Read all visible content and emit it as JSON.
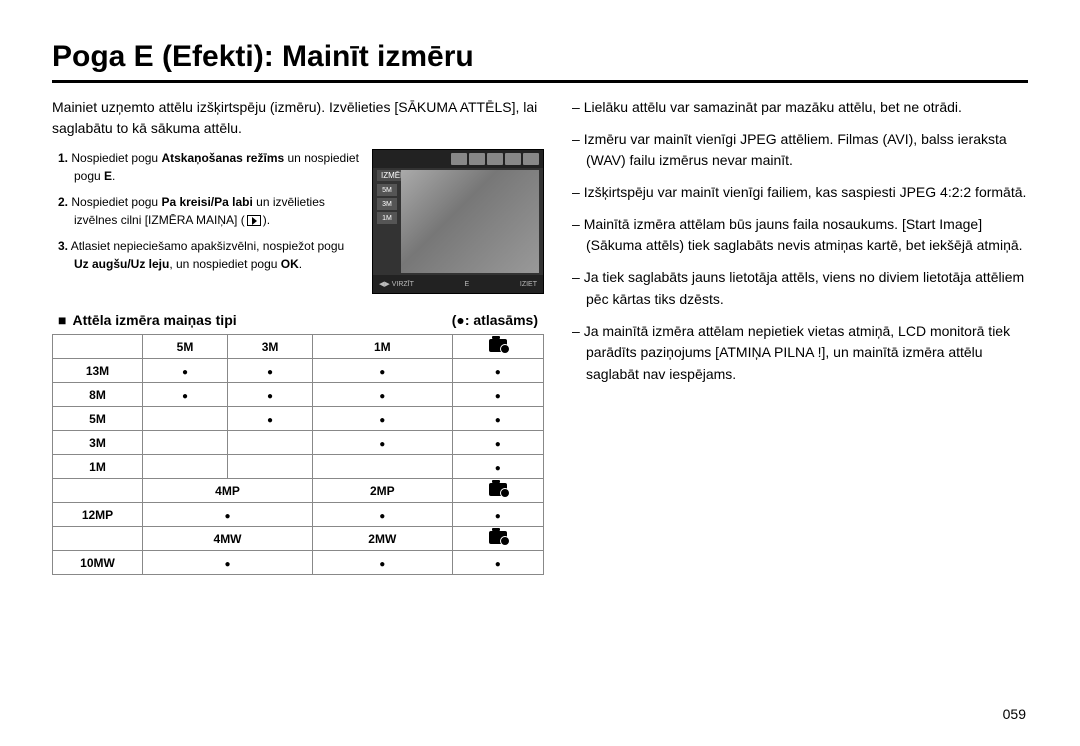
{
  "title": "Poga E (Efekti): Mainīt izmēru",
  "intro": "Mainiet uzņemto attēlu izšķirtspēju (izmēru). Izvēlieties [SĀKUMA ATTĒLS], lai saglabātu to kā sākuma attēlu.",
  "steps": [
    {
      "num": "1.",
      "pre": "Nospiediet pogu ",
      "bold": "Atskaņošanas režīms",
      "post": " un nospiediet pogu ",
      "bold2": "E",
      "post2": "."
    },
    {
      "num": "2.",
      "pre": "Nospiediet pogu ",
      "bold": "Pa kreisi/Pa labi",
      "post": " un izvēlieties izvēlnes cilni [IZMĒRA MAIŅA] (",
      "bold2": "",
      "post2": ")."
    },
    {
      "num": "3.",
      "pre": "Atlasiet nepieciešamo apakšizvēlni, nospiežot pogu ",
      "bold": "Uz augšu/Uz leju",
      "post": ", un nospiediet pogu ",
      "bold2": "OK",
      "post2": "."
    }
  ],
  "preview": {
    "label": "IZMĒRA MAIŅA",
    "side_items": [
      "5M",
      "3M",
      "1M"
    ],
    "bottom_left": "VIRZĪT",
    "bottom_mid": "E",
    "bottom_right": "IZIET"
  },
  "section_label": "Attēla izmēra maiņas tipi",
  "section_right": "atlasāms",
  "table": {
    "header": [
      "",
      "5M",
      "3M",
      "1M",
      "icon"
    ],
    "block1": [
      {
        "h": "13M",
        "cells": [
          true,
          true,
          true,
          true
        ]
      },
      {
        "h": "8M",
        "cells": [
          true,
          true,
          true,
          true
        ]
      },
      {
        "h": "5M",
        "cells": [
          false,
          true,
          true,
          true
        ]
      },
      {
        "h": "3M",
        "cells": [
          false,
          false,
          true,
          true
        ]
      },
      {
        "h": "1M",
        "cells": [
          false,
          false,
          false,
          true
        ]
      }
    ],
    "header2": [
      "",
      "4MP",
      "2MP",
      "icon"
    ],
    "block2": [
      {
        "h": "12MP",
        "cells": [
          true,
          true,
          true
        ]
      }
    ],
    "header3": [
      "",
      "4MW",
      "2MW",
      "icon"
    ],
    "block3": [
      {
        "h": "10MW",
        "cells": [
          true,
          true,
          true
        ]
      }
    ]
  },
  "notes": [
    "Lielāku attēlu var samazināt par mazāku attēlu, bet ne otrādi.",
    "Izmēru var mainīt vienīgi JPEG attēliem. Filmas (AVI), balss ieraksta (WAV) failu izmērus nevar mainīt.",
    "Izšķirtspēju var mainīt vienīgi failiem, kas saspiesti JPEG 4:2:2 formātā.",
    "Mainītā izmēra attēlam būs jauns faila nosaukums. [Start Image] (Sākuma attēls) tiek saglabāts nevis atmiņas kartē, bet iekšējā atmiņā.",
    "Ja tiek saglabāts jauns lietotāja attēls, viens no diviem lietotāja attēliem pēc kārtas tiks dzēsts.",
    "Ja mainītā izmēra attēlam nepietiek vietas atmiņā, LCD monitorā tiek parādīts paziņojums [ATMIŅA PILNA !], un mainītā izmēra attēlu saglabāt nav iespējams."
  ],
  "page_number": "059",
  "colors": {
    "text": "#000000",
    "border": "#888888",
    "preview_bg": "#333333"
  }
}
